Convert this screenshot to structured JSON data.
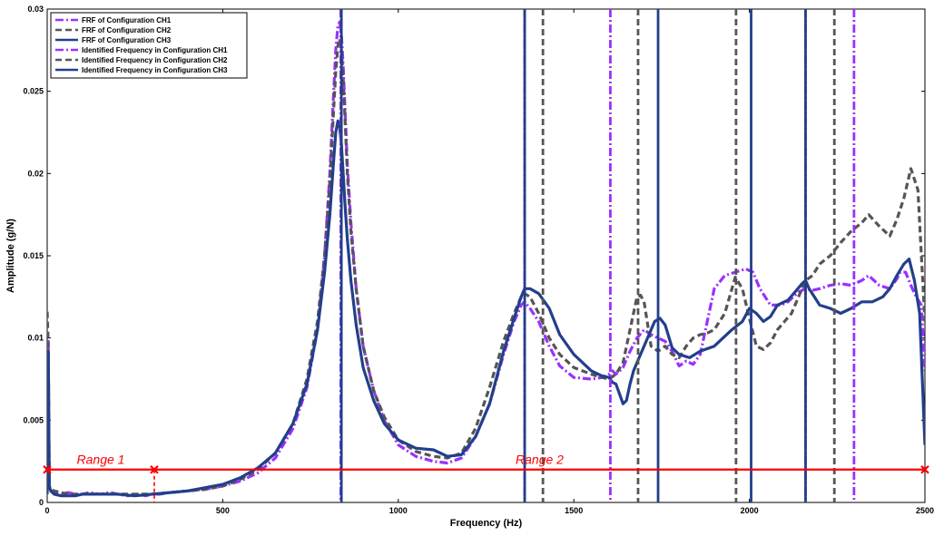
{
  "chart_data": {
    "type": "line",
    "title": "",
    "xlabel": "Frequency (Hz)",
    "ylabel": "Amplitude (g/N)",
    "xlim": [
      0,
      2500
    ],
    "ylim": [
      0,
      0.03
    ],
    "xticks": [
      0,
      500,
      1000,
      1500,
      2000,
      2500
    ],
    "xtick_labels": [
      "0",
      "500",
      "1000",
      "1500",
      "2000",
      "2500"
    ],
    "yticks": [
      0,
      0.005,
      0.01,
      0.015,
      0.02,
      0.025,
      0.03
    ],
    "ytick_labels": [
      "0",
      "0.005",
      "0.01",
      "0.015",
      "0.02",
      "0.025",
      "0.03"
    ],
    "grid": false,
    "legend_position": "top-left",
    "series": [
      {
        "name": "FRF of Configuration CH1",
        "color": "#9b30ff",
        "style": "dashdot",
        "x": [
          0,
          3,
          6,
          10,
          20,
          40,
          60,
          80,
          100,
          120,
          150,
          180,
          200,
          230,
          260,
          280,
          300,
          320,
          350,
          400,
          450,
          500,
          550,
          600,
          650,
          700,
          740,
          770,
          790,
          805,
          815,
          822,
          828,
          833,
          838,
          843,
          848,
          855,
          865,
          880,
          900,
          930,
          960,
          1000,
          1050,
          1100,
          1140,
          1180,
          1220,
          1260,
          1300,
          1330,
          1350,
          1360,
          1375,
          1400,
          1430,
          1460,
          1500,
          1550,
          1580,
          1600,
          1610,
          1620,
          1640,
          1660,
          1680,
          1700,
          1720,
          1740,
          1760,
          1780,
          1800,
          1820,
          1840,
          1860,
          1880,
          1900,
          1930,
          1960,
          1990,
          2010,
          2030,
          2060,
          2090,
          2110,
          2140,
          2160,
          2180,
          2200,
          2230,
          2260,
          2290,
          2320,
          2340,
          2370,
          2400,
          2420,
          2430,
          2445,
          2460,
          2475,
          2490,
          2500
        ],
        "y": [
          0.0011,
          0.0098,
          0.0009,
          0.0007,
          0.0006,
          0.0005,
          0.0006,
          0.0005,
          0.0005,
          0.0006,
          0.0005,
          0.0006,
          0.0005,
          0.0004,
          0.0005,
          0.0004,
          0.0005,
          0.0005,
          0.0006,
          0.0007,
          0.0008,
          0.001,
          0.0013,
          0.0018,
          0.0027,
          0.0045,
          0.007,
          0.0105,
          0.015,
          0.02,
          0.0245,
          0.0275,
          0.029,
          0.0292,
          0.0285,
          0.0265,
          0.024,
          0.0205,
          0.017,
          0.013,
          0.0095,
          0.0068,
          0.005,
          0.0035,
          0.0028,
          0.0025,
          0.0024,
          0.0027,
          0.004,
          0.006,
          0.009,
          0.011,
          0.012,
          0.0122,
          0.0118,
          0.011,
          0.0095,
          0.0083,
          0.0076,
          0.0075,
          0.0076,
          0.0078,
          0.008,
          0.0078,
          0.0082,
          0.0092,
          0.01,
          0.0105,
          0.0102,
          0.01,
          0.0098,
          0.0092,
          0.0083,
          0.0086,
          0.0084,
          0.009,
          0.011,
          0.013,
          0.0138,
          0.014,
          0.0142,
          0.014,
          0.013,
          0.012,
          0.012,
          0.0122,
          0.0128,
          0.013,
          0.0129,
          0.013,
          0.0132,
          0.0133,
          0.0132,
          0.0135,
          0.0138,
          0.0132,
          0.013,
          0.0136,
          0.014,
          0.014,
          0.0132,
          0.0125,
          0.012,
          0.008
        ]
      },
      {
        "name": "FRF of Configuration CH2",
        "color": "#555555",
        "style": "dashed",
        "x": [
          0,
          3,
          6,
          10,
          20,
          40,
          60,
          80,
          100,
          150,
          200,
          250,
          300,
          350,
          400,
          450,
          500,
          550,
          600,
          650,
          700,
          740,
          770,
          790,
          805,
          815,
          822,
          828,
          833,
          838,
          843,
          848,
          855,
          865,
          880,
          900,
          930,
          960,
          1000,
          1050,
          1100,
          1140,
          1180,
          1220,
          1260,
          1300,
          1330,
          1350,
          1360,
          1375,
          1400,
          1430,
          1460,
          1500,
          1550,
          1580,
          1600,
          1620,
          1640,
          1660,
          1680,
          1690,
          1700,
          1720,
          1740,
          1760,
          1780,
          1800,
          1820,
          1840,
          1860,
          1880,
          1900,
          1930,
          1960,
          1980,
          2000,
          2020,
          2040,
          2060,
          2080,
          2100,
          2120,
          2140,
          2160,
          2180,
          2200,
          2230,
          2260,
          2290,
          2320,
          2340,
          2370,
          2400,
          2420,
          2440,
          2460,
          2480,
          2490,
          2500
        ],
        "y": [
          0.0116,
          0.0095,
          0.001,
          0.0008,
          0.0007,
          0.0006,
          0.0005,
          0.0005,
          0.0005,
          0.0005,
          0.0005,
          0.0005,
          0.0005,
          0.0006,
          0.0007,
          0.0008,
          0.001,
          0.0014,
          0.002,
          0.003,
          0.0048,
          0.0075,
          0.011,
          0.015,
          0.0195,
          0.0235,
          0.0262,
          0.0278,
          0.0282,
          0.0275,
          0.0258,
          0.0235,
          0.02,
          0.0165,
          0.013,
          0.0095,
          0.0068,
          0.0052,
          0.0038,
          0.0031,
          0.0028,
          0.0027,
          0.003,
          0.0045,
          0.007,
          0.0098,
          0.0115,
          0.0125,
          0.0127,
          0.0125,
          0.0115,
          0.01,
          0.009,
          0.0082,
          0.0078,
          0.0076,
          0.0075,
          0.0078,
          0.0085,
          0.0105,
          0.0125,
          0.0126,
          0.0122,
          0.0095,
          0.0092,
          0.0095,
          0.009,
          0.0088,
          0.0095,
          0.01,
          0.0102,
          0.0103,
          0.0105,
          0.0115,
          0.0137,
          0.013,
          0.0112,
          0.0095,
          0.0093,
          0.0097,
          0.0105,
          0.011,
          0.0115,
          0.0125,
          0.0135,
          0.0138,
          0.0145,
          0.015,
          0.0158,
          0.0165,
          0.017,
          0.0175,
          0.0168,
          0.0162,
          0.0172,
          0.0185,
          0.0203,
          0.019,
          0.015,
          0.011
        ]
      },
      {
        "name": "FRF of Configuration CH3",
        "color": "#223f8a",
        "style": "solid",
        "x": [
          0,
          3,
          6,
          10,
          20,
          40,
          60,
          80,
          100,
          150,
          200,
          250,
          300,
          350,
          400,
          450,
          500,
          550,
          600,
          650,
          700,
          740,
          770,
          790,
          805,
          815,
          822,
          828,
          833,
          838,
          843,
          848,
          855,
          865,
          880,
          900,
          930,
          960,
          1000,
          1050,
          1100,
          1140,
          1180,
          1220,
          1260,
          1300,
          1330,
          1350,
          1360,
          1375,
          1400,
          1430,
          1460,
          1500,
          1550,
          1580,
          1600,
          1610,
          1620,
          1630,
          1640,
          1650,
          1660,
          1670,
          1690,
          1710,
          1730,
          1745,
          1760,
          1780,
          1800,
          1830,
          1860,
          1900,
          1950,
          1980,
          2000,
          2020,
          2040,
          2060,
          2080,
          2110,
          2130,
          2150,
          2160,
          2170,
          2200,
          2230,
          2260,
          2290,
          2320,
          2350,
          2380,
          2400,
          2420,
          2440,
          2455,
          2470,
          2485,
          2500
        ],
        "y": [
          0.0005,
          0.0092,
          0.001,
          0.0007,
          0.0005,
          0.0004,
          0.0004,
          0.0004,
          0.0005,
          0.0005,
          0.0005,
          0.0004,
          0.0005,
          0.0006,
          0.0007,
          0.0009,
          0.0011,
          0.0015,
          0.0021,
          0.003,
          0.0048,
          0.0072,
          0.0105,
          0.014,
          0.0175,
          0.0205,
          0.0225,
          0.0232,
          0.0228,
          0.0218,
          0.02,
          0.0182,
          0.016,
          0.0135,
          0.0108,
          0.0082,
          0.0062,
          0.0048,
          0.0038,
          0.0033,
          0.0032,
          0.0028,
          0.0029,
          0.004,
          0.006,
          0.0092,
          0.0112,
          0.0125,
          0.013,
          0.013,
          0.0127,
          0.0118,
          0.0102,
          0.009,
          0.008,
          0.0077,
          0.0076,
          0.0073,
          0.0072,
          0.0066,
          0.006,
          0.0062,
          0.0072,
          0.008,
          0.009,
          0.01,
          0.011,
          0.0112,
          0.0108,
          0.0094,
          0.009,
          0.0088,
          0.0092,
          0.0095,
          0.0105,
          0.011,
          0.0118,
          0.0115,
          0.011,
          0.0113,
          0.012,
          0.0123,
          0.0128,
          0.0133,
          0.0135,
          0.013,
          0.012,
          0.0118,
          0.0115,
          0.0118,
          0.0122,
          0.0122,
          0.0125,
          0.013,
          0.0138,
          0.0145,
          0.0148,
          0.0135,
          0.0115,
          0.0035
        ]
      }
    ],
    "identified_frequencies": [
      {
        "name": "Identified Frequency in Configuration CH1",
        "color": "#9b30ff",
        "style": "dashdot",
        "x": [
          836,
          1360,
          1604,
          2160,
          2298
        ]
      },
      {
        "name": "Identified Frequency in Configuration CH2",
        "color": "#555555",
        "style": "dashed",
        "x": [
          1412,
          1683,
          1962,
          2242
        ]
      },
      {
        "name": "Identified Frequency in Configuration CH3",
        "color": "#223f8a",
        "style": "solid",
        "x": [
          838,
          1360,
          1740,
          2005,
          2160
        ]
      }
    ],
    "annotations": [
      {
        "label": "Range 1",
        "x_start": 0,
        "x_end": 305,
        "y": 0.002,
        "color": "#ff0000"
      },
      {
        "label": "Range 2",
        "x_start": 305,
        "x_end": 2500,
        "y": 0.002,
        "color": "#ff0000"
      }
    ]
  }
}
